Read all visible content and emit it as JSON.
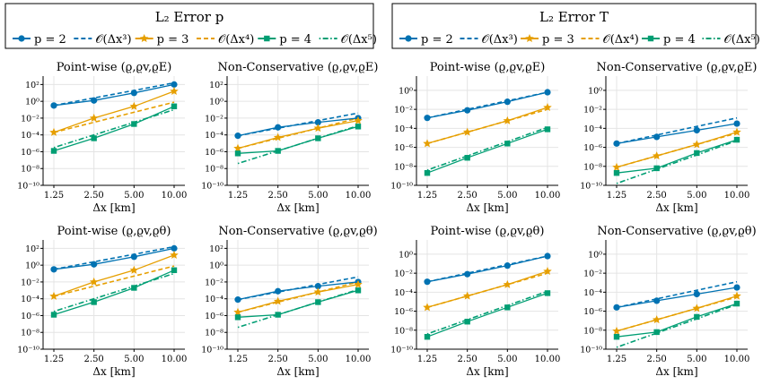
{
  "legends": [
    {
      "title": "L₂ Error  p",
      "entries": [
        {
          "label": "p = 2",
          "style": "p2"
        },
        {
          "label": "𝒪(Δx³)",
          "style": "o3"
        },
        {
          "label": "p = 3",
          "style": "p3"
        },
        {
          "label": "𝒪(Δx⁴)",
          "style": "o4"
        },
        {
          "label": "p = 4",
          "style": "p4"
        },
        {
          "label": "𝒪(Δx⁵)",
          "style": "o5"
        }
      ]
    },
    {
      "title": "L₂ Error  T",
      "entries": [
        {
          "label": "p = 2",
          "style": "p2"
        },
        {
          "label": "𝒪(Δx³)",
          "style": "o3"
        },
        {
          "label": "p = 3",
          "style": "p3"
        },
        {
          "label": "𝒪(Δx⁴)",
          "style": "o4"
        },
        {
          "label": "p = 4",
          "style": "p4"
        },
        {
          "label": "𝒪(Δx⁵)",
          "style": "o5"
        }
      ]
    }
  ],
  "colors": {
    "p2": "#0072b2",
    "p3": "#e69f00",
    "p4": "#009e73",
    "grid": "#e4e4e4",
    "axis": "#000000"
  },
  "x_ticks": [
    "1.25",
    "2.50",
    "5.00",
    "10.00"
  ],
  "x_label": "Δx [km]",
  "chart_data": [
    {
      "type": "line",
      "title": "Point-wise (ϱ,ϱv,ϱE)",
      "xlabel": "Δx [km]",
      "x": [
        1.25,
        2.5,
        5,
        10
      ],
      "ylim": [
        -10,
        3
      ],
      "yticks": [
        -10,
        -8,
        -6,
        -4,
        -2,
        0,
        2
      ],
      "ytick_labels": [
        "10⁻¹⁰",
        "10⁻⁸",
        "10⁻⁶",
        "10⁻⁴",
        "10⁻²",
        "10⁰",
        "10²"
      ],
      "series": [
        {
          "name": "p = 2",
          "style": "p2",
          "log10_values": [
            -0.5,
            0.1,
            1.0,
            2.0
          ]
        },
        {
          "name": "𝒪(Δx³)",
          "style": "o3",
          "log10_values": [
            -0.5,
            0.4,
            1.3,
            2.2
          ]
        },
        {
          "name": "p = 3",
          "style": "p3",
          "log10_values": [
            -3.7,
            -2.0,
            -0.6,
            1.2
          ]
        },
        {
          "name": "𝒪(Δx⁴)",
          "style": "o4",
          "log10_values": [
            -3.7,
            -2.5,
            -1.3,
            -0.1
          ]
        },
        {
          "name": "p = 4",
          "style": "p4",
          "log10_values": [
            -5.9,
            -4.4,
            -2.7,
            -0.6
          ]
        },
        {
          "name": "𝒪(Δx⁵)",
          "style": "o5",
          "log10_values": [
            -5.5,
            -4.0,
            -2.5,
            -1.0
          ]
        }
      ]
    },
    {
      "type": "line",
      "title": "Non-Conservative (ϱ,ϱv,ϱE)",
      "xlabel": "Δx [km]",
      "x": [
        1.25,
        2.5,
        5,
        10
      ],
      "ylim": [
        -10,
        3
      ],
      "yticks": [
        -10,
        -8,
        -6,
        -4,
        -2,
        0,
        2
      ],
      "ytick_labels": [
        "10⁻¹⁰",
        "10⁻⁸",
        "10⁻⁶",
        "10⁻⁴",
        "10⁻²",
        "10⁰",
        "10²"
      ],
      "series": [
        {
          "name": "p = 2",
          "style": "p2",
          "log10_values": [
            -4.1,
            -3.1,
            -2.5,
            -2.0
          ]
        },
        {
          "name": "𝒪(Δx³)",
          "style": "o3",
          "log10_values": [
            -4.1,
            -3.2,
            -2.3,
            -1.4
          ]
        },
        {
          "name": "p = 3",
          "style": "p3",
          "log10_values": [
            -5.6,
            -4.3,
            -3.2,
            -2.3
          ]
        },
        {
          "name": "𝒪(Δx⁴)",
          "style": "o4",
          "log10_values": [
            -5.6,
            -4.4,
            -3.2,
            -2.0
          ]
        },
        {
          "name": "p = 4",
          "style": "p4",
          "log10_values": [
            -6.2,
            -5.9,
            -4.4,
            -3.0
          ]
        },
        {
          "name": "𝒪(Δx⁵)",
          "style": "o5",
          "log10_values": [
            -7.4,
            -5.9,
            -4.4,
            -2.9
          ]
        }
      ]
    },
    {
      "type": "line",
      "title": "Point-wise (ϱ,ϱv,ϱE)",
      "xlabel": "Δx [km]",
      "x": [
        1.25,
        2.5,
        5,
        10
      ],
      "ylim": [
        -10,
        1.5
      ],
      "yticks": [
        -10,
        -8,
        -6,
        -4,
        -2,
        0
      ],
      "ytick_labels": [
        "10⁻¹⁰",
        "10⁻⁸",
        "10⁻⁶",
        "10⁻⁴",
        "10⁻²",
        "10⁰"
      ],
      "series": [
        {
          "name": "p = 2",
          "style": "p2",
          "log10_values": [
            -2.9,
            -2.1,
            -1.2,
            -0.2
          ]
        },
        {
          "name": "𝒪(Δx³)",
          "style": "o3",
          "log10_values": [
            -2.9,
            -2.0,
            -1.1,
            -0.2
          ]
        },
        {
          "name": "p = 3",
          "style": "p3",
          "log10_values": [
            -5.6,
            -4.4,
            -3.2,
            -1.8
          ]
        },
        {
          "name": "𝒪(Δx⁴)",
          "style": "o4",
          "log10_values": [
            -5.6,
            -4.4,
            -3.2,
            -2.0
          ]
        },
        {
          "name": "p = 4",
          "style": "p4",
          "log10_values": [
            -8.7,
            -7.1,
            -5.6,
            -4.1
          ]
        },
        {
          "name": "𝒪(Δx⁵)",
          "style": "o5",
          "log10_values": [
            -8.4,
            -6.9,
            -5.4,
            -3.9
          ]
        }
      ]
    },
    {
      "type": "line",
      "title": "Non-Conservative (ϱ,ϱv,ϱE)",
      "xlabel": "Δx [km]",
      "x": [
        1.25,
        2.5,
        5,
        10
      ],
      "ylim": [
        -10,
        1.5
      ],
      "yticks": [
        -10,
        -8,
        -6,
        -4,
        -2,
        0
      ],
      "ytick_labels": [
        "10⁻¹⁰",
        "10⁻⁸",
        "10⁻⁶",
        "10⁻⁴",
        "10⁻²",
        "10⁰"
      ],
      "series": [
        {
          "name": "p = 2",
          "style": "p2",
          "log10_values": [
            -5.6,
            -4.9,
            -4.2,
            -3.5
          ]
        },
        {
          "name": "𝒪(Δx³)",
          "style": "o3",
          "log10_values": [
            -5.6,
            -4.7,
            -3.8,
            -2.9
          ]
        },
        {
          "name": "p = 3",
          "style": "p3",
          "log10_values": [
            -8.1,
            -6.9,
            -5.7,
            -4.4
          ]
        },
        {
          "name": "𝒪(Δx⁴)",
          "style": "o4",
          "log10_values": [
            -8.1,
            -6.9,
            -5.7,
            -4.5
          ]
        },
        {
          "name": "p = 4",
          "style": "p4",
          "log10_values": [
            -8.7,
            -8.2,
            -6.6,
            -5.2
          ]
        },
        {
          "name": "𝒪(Δx⁵)",
          "style": "o5",
          "log10_values": [
            -9.8,
            -8.3,
            -6.8,
            -5.3
          ]
        }
      ]
    },
    {
      "type": "line",
      "title": "Point-wise (ϱ,ϱv,ϱθ)",
      "xlabel": "Δx [km]",
      "x": [
        1.25,
        2.5,
        5,
        10
      ],
      "ylim": [
        -10,
        3
      ],
      "yticks": [
        -10,
        -8,
        -6,
        -4,
        -2,
        0,
        2
      ],
      "ytick_labels": [
        "10⁻¹⁰",
        "10⁻⁸",
        "10⁻⁶",
        "10⁻⁴",
        "10⁻²",
        "10⁰",
        "10²"
      ],
      "series": [
        {
          "name": "p = 2",
          "style": "p2",
          "log10_values": [
            -0.5,
            0.1,
            1.0,
            2.0
          ]
        },
        {
          "name": "𝒪(Δx³)",
          "style": "o3",
          "log10_values": [
            -0.5,
            0.4,
            1.3,
            2.2
          ]
        },
        {
          "name": "p = 3",
          "style": "p3",
          "log10_values": [
            -3.7,
            -2.0,
            -0.6,
            1.2
          ]
        },
        {
          "name": "𝒪(Δx⁴)",
          "style": "o4",
          "log10_values": [
            -3.7,
            -2.5,
            -1.3,
            -0.1
          ]
        },
        {
          "name": "p = 4",
          "style": "p4",
          "log10_values": [
            -5.9,
            -4.4,
            -2.7,
            -0.6
          ]
        },
        {
          "name": "𝒪(Δx⁵)",
          "style": "o5",
          "log10_values": [
            -5.5,
            -4.0,
            -2.5,
            -1.0
          ]
        }
      ]
    },
    {
      "type": "line",
      "title": "Non-Conservative (ϱ,ϱv,ϱθ)",
      "xlabel": "Δx [km]",
      "x": [
        1.25,
        2.5,
        5,
        10
      ],
      "ylim": [
        -10,
        3
      ],
      "yticks": [
        -10,
        -8,
        -6,
        -4,
        -2,
        0,
        2
      ],
      "ytick_labels": [
        "10⁻¹⁰",
        "10⁻⁸",
        "10⁻⁶",
        "10⁻⁴",
        "10⁻²",
        "10⁰",
        "10²"
      ],
      "series": [
        {
          "name": "p = 2",
          "style": "p2",
          "log10_values": [
            -4.1,
            -3.1,
            -2.5,
            -2.0
          ]
        },
        {
          "name": "𝒪(Δx³)",
          "style": "o3",
          "log10_values": [
            -4.1,
            -3.2,
            -2.3,
            -1.4
          ]
        },
        {
          "name": "p = 3",
          "style": "p3",
          "log10_values": [
            -5.6,
            -4.3,
            -3.2,
            -2.3
          ]
        },
        {
          "name": "𝒪(Δx⁴)",
          "style": "o4",
          "log10_values": [
            -5.6,
            -4.4,
            -3.2,
            -2.0
          ]
        },
        {
          "name": "p = 4",
          "style": "p4",
          "log10_values": [
            -6.2,
            -5.9,
            -4.4,
            -3.0
          ]
        },
        {
          "name": "𝒪(Δx⁵)",
          "style": "o5",
          "log10_values": [
            -7.4,
            -5.9,
            -4.4,
            -2.9
          ]
        }
      ]
    },
    {
      "type": "line",
      "title": "Point-wise (ϱ,ϱv,ϱθ)",
      "xlabel": "Δx [km]",
      "x": [
        1.25,
        2.5,
        5,
        10
      ],
      "ylim": [
        -10,
        1.5
      ],
      "yticks": [
        -10,
        -8,
        -6,
        -4,
        -2,
        0
      ],
      "ytick_labels": [
        "10⁻¹⁰",
        "10⁻⁸",
        "10⁻⁶",
        "10⁻⁴",
        "10⁻²",
        "10⁰"
      ],
      "series": [
        {
          "name": "p = 2",
          "style": "p2",
          "log10_values": [
            -2.9,
            -2.1,
            -1.2,
            -0.2
          ]
        },
        {
          "name": "𝒪(Δx³)",
          "style": "o3",
          "log10_values": [
            -2.9,
            -2.0,
            -1.1,
            -0.2
          ]
        },
        {
          "name": "p = 3",
          "style": "p3",
          "log10_values": [
            -5.6,
            -4.4,
            -3.2,
            -1.8
          ]
        },
        {
          "name": "𝒪(Δx⁴)",
          "style": "o4",
          "log10_values": [
            -5.6,
            -4.4,
            -3.2,
            -2.0
          ]
        },
        {
          "name": "p = 4",
          "style": "p4",
          "log10_values": [
            -8.7,
            -7.1,
            -5.6,
            -4.1
          ]
        },
        {
          "name": "𝒪(Δx⁵)",
          "style": "o5",
          "log10_values": [
            -8.4,
            -6.9,
            -5.4,
            -3.9
          ]
        }
      ]
    },
    {
      "type": "line",
      "title": "Non-Conservative (ϱ,ϱv,ϱθ)",
      "xlabel": "Δx [km]",
      "x": [
        1.25,
        2.5,
        5,
        10
      ],
      "ylim": [
        -10,
        1.5
      ],
      "yticks": [
        -10,
        -8,
        -6,
        -4,
        -2,
        0
      ],
      "ytick_labels": [
        "10⁻¹⁰",
        "10⁻⁸",
        "10⁻⁶",
        "10⁻⁴",
        "10⁻²",
        "10⁰"
      ],
      "series": [
        {
          "name": "p = 2",
          "style": "p2",
          "log10_values": [
            -5.6,
            -4.9,
            -4.2,
            -3.5
          ]
        },
        {
          "name": "𝒪(Δx³)",
          "style": "o3",
          "log10_values": [
            -5.6,
            -4.7,
            -3.8,
            -2.9
          ]
        },
        {
          "name": "p = 3",
          "style": "p3",
          "log10_values": [
            -8.1,
            -6.9,
            -5.7,
            -4.4
          ]
        },
        {
          "name": "𝒪(Δx⁴)",
          "style": "o4",
          "log10_values": [
            -8.1,
            -6.9,
            -5.7,
            -4.5
          ]
        },
        {
          "name": "p = 4",
          "style": "p4",
          "log10_values": [
            -8.7,
            -8.2,
            -6.6,
            -5.2
          ]
        },
        {
          "name": "𝒪(Δx⁵)",
          "style": "o5",
          "log10_values": [
            -9.8,
            -8.3,
            -6.8,
            -5.3
          ]
        }
      ]
    }
  ]
}
